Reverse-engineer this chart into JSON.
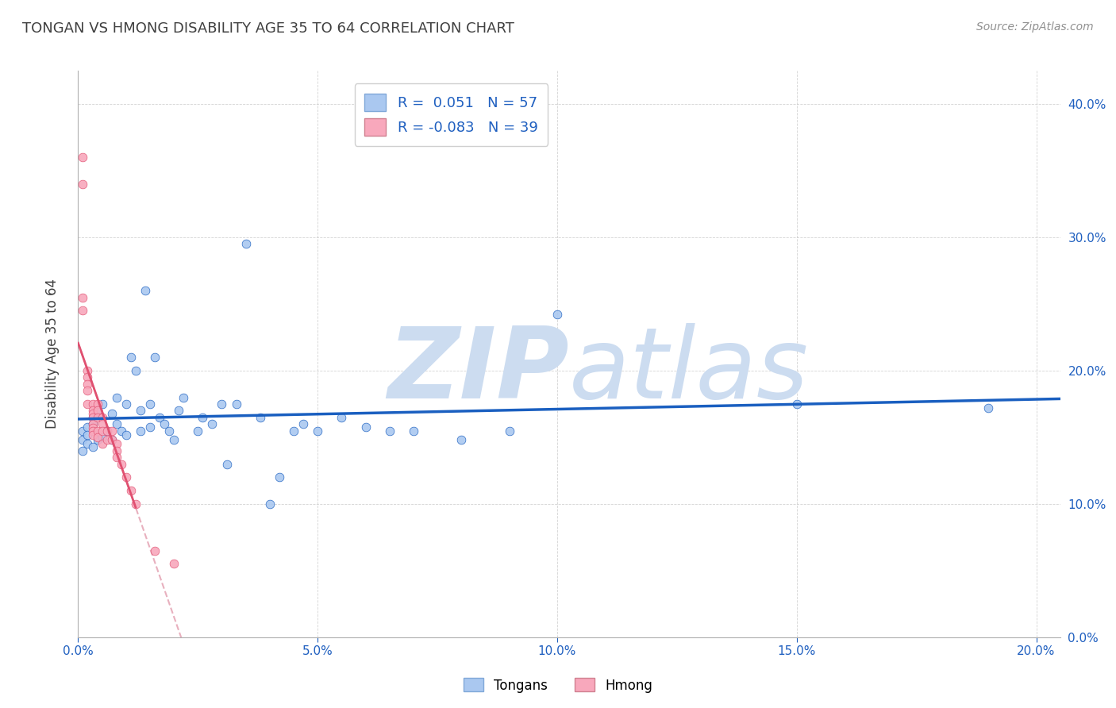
{
  "title": "TONGAN VS HMONG DISABILITY AGE 35 TO 64 CORRELATION CHART",
  "source": "Source: ZipAtlas.com",
  "xmin": 0.0,
  "xmax": 0.205,
  "ymin": 0.0,
  "ymax": 0.425,
  "tongan_R": 0.051,
  "tongan_N": 57,
  "hmong_R": -0.083,
  "hmong_N": 39,
  "tongan_color": "#aac8f0",
  "hmong_color": "#f8a8bc",
  "tongan_line_color": "#1a5fc0",
  "hmong_solid_color": "#e05070",
  "hmong_dash_color": "#e8b0be",
  "background_color": "#ffffff",
  "watermark_color": "#ccdcf0",
  "tongan_x": [
    0.001,
    0.001,
    0.001,
    0.002,
    0.002,
    0.002,
    0.003,
    0.003,
    0.003,
    0.004,
    0.004,
    0.005,
    0.005,
    0.006,
    0.007,
    0.007,
    0.008,
    0.008,
    0.009,
    0.01,
    0.01,
    0.011,
    0.012,
    0.013,
    0.013,
    0.014,
    0.015,
    0.015,
    0.016,
    0.017,
    0.018,
    0.019,
    0.02,
    0.021,
    0.022,
    0.025,
    0.026,
    0.028,
    0.03,
    0.031,
    0.033,
    0.035,
    0.038,
    0.04,
    0.042,
    0.045,
    0.047,
    0.05,
    0.055,
    0.06,
    0.065,
    0.07,
    0.08,
    0.09,
    0.1,
    0.15,
    0.19
  ],
  "tongan_y": [
    0.155,
    0.148,
    0.14,
    0.158,
    0.152,
    0.145,
    0.165,
    0.16,
    0.143,
    0.17,
    0.148,
    0.175,
    0.15,
    0.155,
    0.168,
    0.148,
    0.18,
    0.16,
    0.155,
    0.175,
    0.152,
    0.21,
    0.2,
    0.17,
    0.155,
    0.26,
    0.175,
    0.158,
    0.21,
    0.165,
    0.16,
    0.155,
    0.148,
    0.17,
    0.18,
    0.155,
    0.165,
    0.16,
    0.175,
    0.13,
    0.175,
    0.295,
    0.165,
    0.1,
    0.12,
    0.155,
    0.16,
    0.155,
    0.165,
    0.158,
    0.155,
    0.155,
    0.148,
    0.155,
    0.242,
    0.175,
    0.172
  ],
  "hmong_x": [
    0.001,
    0.001,
    0.001,
    0.001,
    0.002,
    0.002,
    0.002,
    0.002,
    0.002,
    0.003,
    0.003,
    0.003,
    0.003,
    0.003,
    0.003,
    0.003,
    0.003,
    0.004,
    0.004,
    0.004,
    0.004,
    0.004,
    0.005,
    0.005,
    0.005,
    0.005,
    0.006,
    0.006,
    0.007,
    0.007,
    0.008,
    0.008,
    0.008,
    0.009,
    0.01,
    0.011,
    0.012,
    0.016,
    0.02
  ],
  "hmong_y": [
    0.36,
    0.34,
    0.255,
    0.245,
    0.2,
    0.195,
    0.19,
    0.185,
    0.175,
    0.175,
    0.17,
    0.168,
    0.165,
    0.16,
    0.157,
    0.155,
    0.152,
    0.175,
    0.17,
    0.165,
    0.155,
    0.15,
    0.165,
    0.16,
    0.155,
    0.145,
    0.155,
    0.148,
    0.155,
    0.148,
    0.145,
    0.14,
    0.135,
    0.13,
    0.12,
    0.11,
    0.1,
    0.065,
    0.055
  ]
}
